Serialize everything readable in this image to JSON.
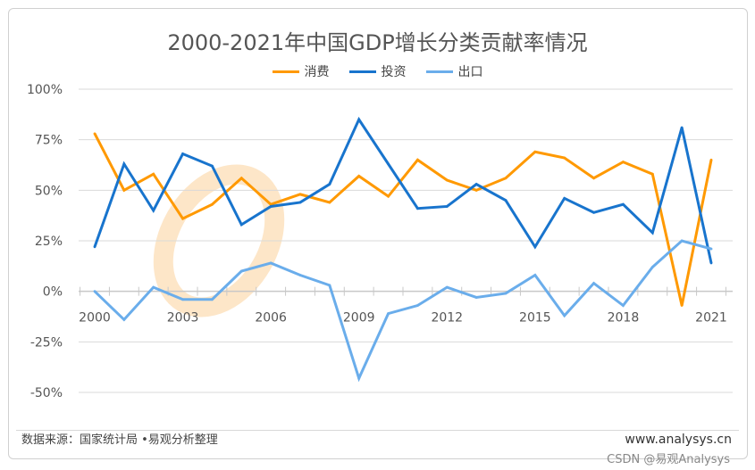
{
  "chart_data": {
    "type": "line",
    "title": "2000-2021年中国GDP增长分类贡献率情况",
    "x": [
      2000,
      2001,
      2002,
      2003,
      2004,
      2005,
      2006,
      2007,
      2008,
      2009,
      2010,
      2011,
      2012,
      2013,
      2014,
      2015,
      2016,
      2017,
      2018,
      2019,
      2020,
      2021
    ],
    "xticks": [
      "2000",
      "2003",
      "2006",
      "2009",
      "2012",
      "2015",
      "2018",
      "2021"
    ],
    "yticks": [
      "100%",
      "75%",
      "50%",
      "25%",
      "0%",
      "-25%",
      "-50%"
    ],
    "ylim": [
      -50,
      100
    ],
    "legend_position": "top-center",
    "series": [
      {
        "name": "消费",
        "color": "#FF9900",
        "values": [
          78,
          50,
          58,
          36,
          43,
          56,
          43,
          48,
          44,
          57,
          47,
          65,
          55,
          50,
          56,
          69,
          66,
          56,
          64,
          58,
          -7,
          65
        ]
      },
      {
        "name": "投资",
        "color": "#1874CD",
        "values": [
          22,
          63,
          40,
          68,
          62,
          33,
          42,
          44,
          53,
          85,
          63,
          41,
          42,
          53,
          45,
          22,
          46,
          39,
          43,
          29,
          81,
          14
        ]
      },
      {
        "name": "出口",
        "color": "#6AADEB",
        "values": [
          0,
          -14,
          2,
          -4,
          -4,
          10,
          14,
          8,
          3,
          -43,
          -11,
          -7,
          2,
          -3,
          -1,
          8,
          -12,
          4,
          -7,
          12,
          25,
          21
        ]
      }
    ]
  },
  "footer": {
    "source": "数据来源：国家统计局 •易观分析整理",
    "site": "www.analysys.cn",
    "csdn": "CSDN @易观Analysys"
  },
  "watermark": {
    "text1": "Analysys",
    "text2": "易观分析"
  }
}
